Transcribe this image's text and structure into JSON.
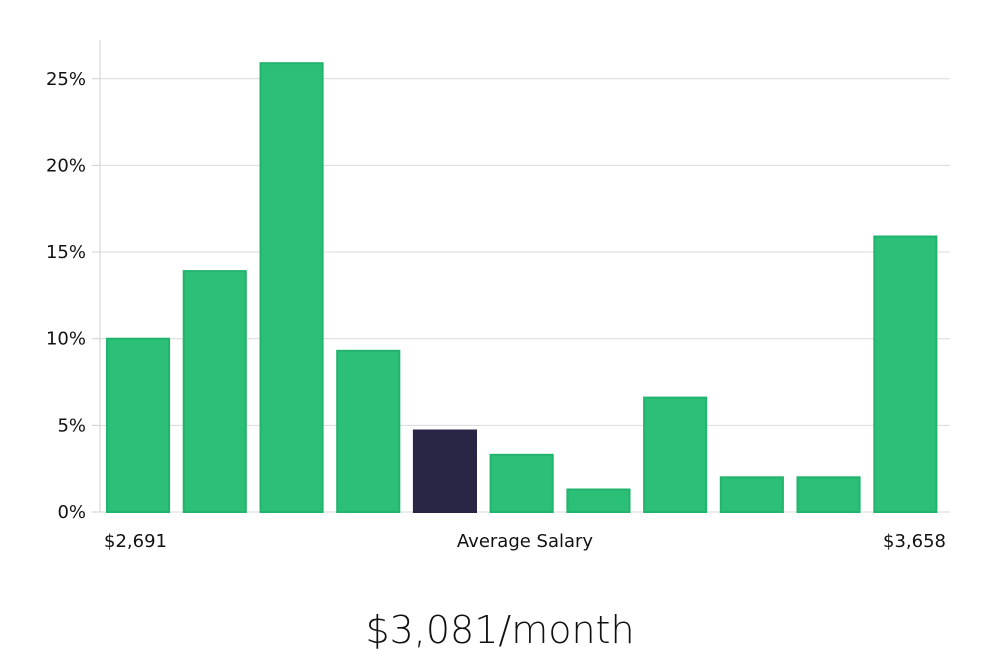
{
  "headline": "$3,081/month",
  "colors": {
    "bar": "#2bbf77",
    "bar_stroke": "#22b36c",
    "highlight": "#282545"
  },
  "chart_data": {
    "type": "bar",
    "title": "",
    "xlabel": "Average Salary",
    "ylabel": "",
    "x_start_label": "$2,691",
    "x_end_label": "$3,658",
    "values": [
      10.0,
      13.9,
      25.9,
      9.3,
      4.7,
      3.3,
      1.3,
      6.6,
      2.0,
      2.0,
      15.9
    ],
    "highlight_index": 4,
    "ylim": [
      0,
      27
    ],
    "yticks": [
      0,
      5,
      10,
      15,
      20,
      25
    ],
    "ytick_labels": [
      "0%",
      "5%",
      "10%",
      "15%",
      "20%",
      "25%"
    ],
    "grid": true
  }
}
